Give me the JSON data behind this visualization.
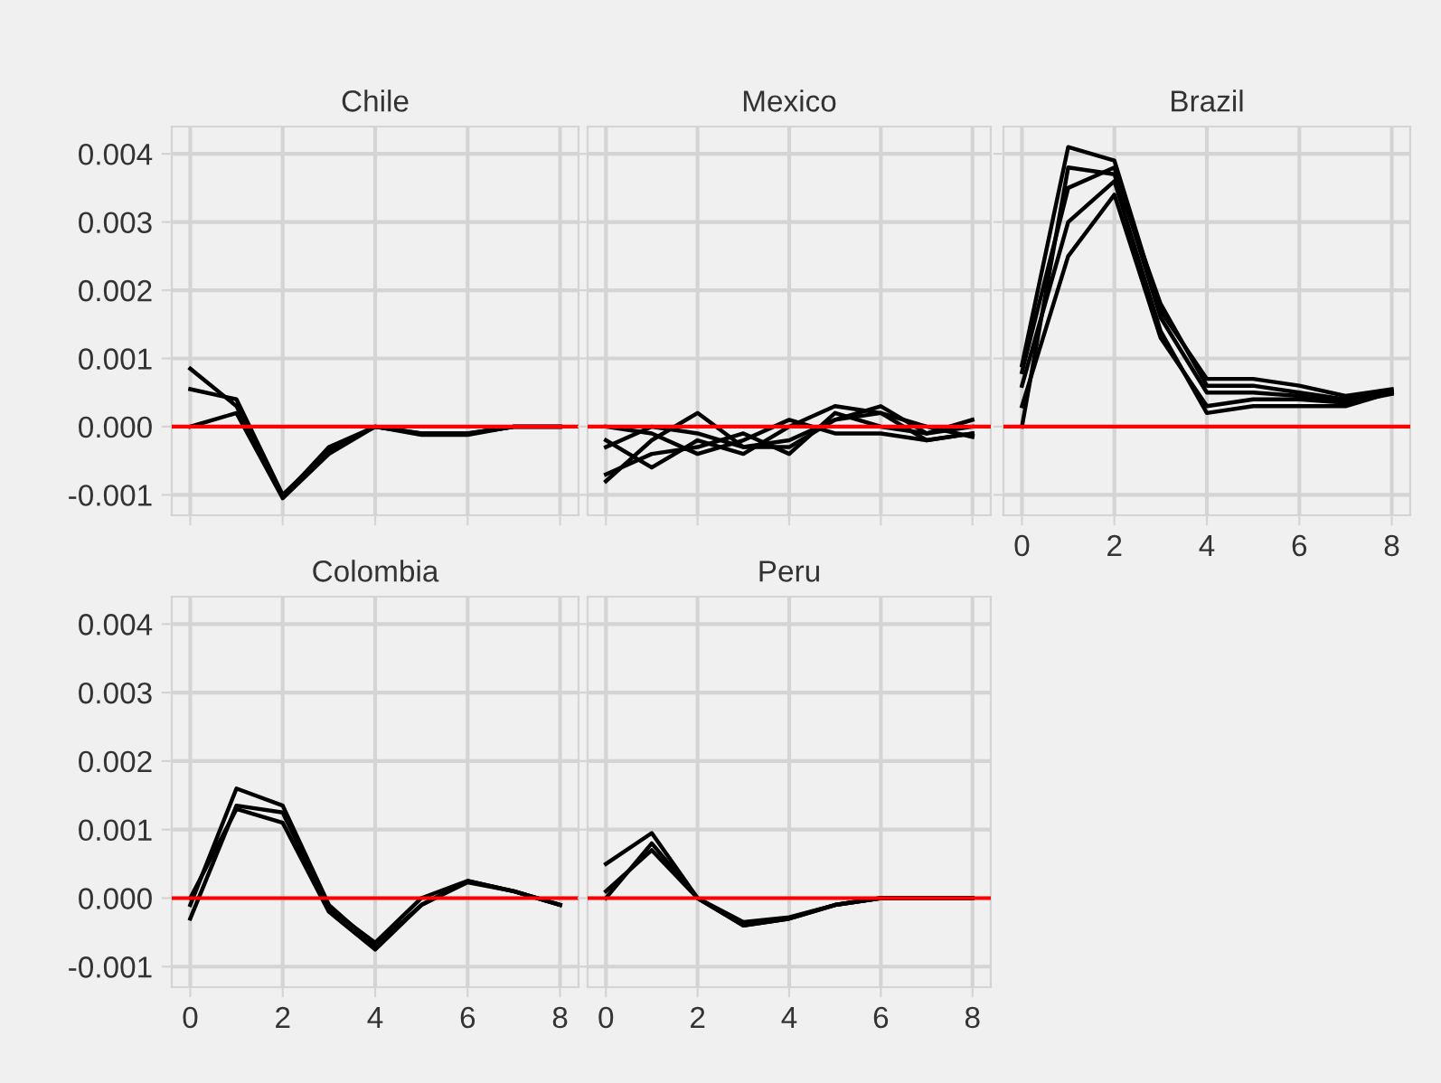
{
  "chart_data": [
    {
      "type": "line",
      "title": "Chile",
      "x": [
        0,
        1,
        2,
        3,
        4,
        5,
        6,
        7,
        8
      ],
      "xlim": [
        -0.4,
        8.4
      ],
      "xticks": [
        {
          "value": 0,
          "label": null
        },
        {
          "value": 2,
          "label": null
        },
        {
          "value": 4,
          "label": null
        },
        {
          "value": 6,
          "label": null
        },
        {
          "value": 8,
          "label": null
        }
      ],
      "ylim": [
        -0.0013,
        0.0044
      ],
      "yticks": [
        {
          "value": -0.001,
          "label": "-0.001"
        },
        {
          "value": 0,
          "label": "0.000"
        },
        {
          "value": 0.001,
          "label": "0.001"
        },
        {
          "value": 0.002,
          "label": "0.002"
        },
        {
          "value": 0.003,
          "label": "0.003"
        },
        {
          "value": 0.004,
          "label": "0.004"
        }
      ],
      "tick_labels": "y",
      "grid": true,
      "marker": "none",
      "line_style": "solid",
      "ref_lines": [
        {
          "axis": "y",
          "value": 0,
          "color": "#ff0000"
        }
      ],
      "series": [
        {
          "color": "#000000",
          "values": [
            0.00085,
            0.0003,
            -0.00103,
            -0.0003,
            0.0,
            -0.0001,
            -0.0001,
            0.0,
            0.0
          ]
        },
        {
          "color": "#000000",
          "values": [
            0.00055,
            0.0004,
            -0.001,
            -0.00035,
            0.0,
            -0.0001,
            -0.0001,
            0.0,
            0.0
          ]
        },
        {
          "color": "#000000",
          "values": [
            0.0,
            0.0002,
            -0.00105,
            -0.0004,
            0.0,
            -0.00012,
            -0.00012,
            0.0,
            0.0
          ]
        }
      ]
    },
    {
      "type": "line",
      "title": "Mexico",
      "x": [
        0,
        1,
        2,
        3,
        4,
        5,
        6,
        7,
        8
      ],
      "xlim": [
        -0.4,
        8.4
      ],
      "xticks": [
        {
          "value": 0,
          "label": null
        },
        {
          "value": 2,
          "label": null
        },
        {
          "value": 4,
          "label": null
        },
        {
          "value": 6,
          "label": null
        },
        {
          "value": 8,
          "label": null
        }
      ],
      "ylim": [
        -0.0013,
        0.0044
      ],
      "yticks": [
        {
          "value": -0.001,
          "label": null
        },
        {
          "value": 0,
          "label": null
        },
        {
          "value": 0.001,
          "label": null
        },
        {
          "value": 0.002,
          "label": null
        },
        {
          "value": 0.003,
          "label": null
        },
        {
          "value": 0.004,
          "label": null
        }
      ],
      "tick_labels": false,
      "grid": true,
      "marker": "none",
      "line_style": "solid",
      "ref_lines": [
        {
          "axis": "y",
          "value": 0,
          "color": "#ff0000"
        }
      ],
      "series": [
        {
          "color": "#000000",
          "values": [
            -0.0008,
            -0.0002,
            0.0002,
            -0.0003,
            -0.0003,
            0.0001,
            0.0002,
            -0.0002,
            -0.0001
          ]
        },
        {
          "color": "#000000",
          "values": [
            -0.0007,
            -0.0004,
            -0.0003,
            -0.0001,
            -0.0004,
            0.0002,
            0.0,
            -0.0001,
            0.0001
          ]
        },
        {
          "color": "#000000",
          "values": [
            -0.0002,
            -0.0006,
            -0.0002,
            -0.0004,
            0.0,
            0.0003,
            0.0002,
            0.0,
            -0.00015
          ]
        },
        {
          "color": "#000000",
          "values": [
            0.0,
            -0.0001,
            -0.0004,
            -0.0002,
            0.0001,
            -0.0001,
            -0.0001,
            -0.0002,
            -0.0001
          ]
        },
        {
          "color": "#000000",
          "values": [
            -0.0003,
            0.0,
            -0.0001,
            -0.0003,
            -0.0002,
            0.0001,
            0.0003,
            -0.0001,
            0.0
          ]
        }
      ]
    },
    {
      "type": "line",
      "title": "Brazil",
      "x": [
        0,
        1,
        2,
        3,
        4,
        5,
        6,
        7,
        8
      ],
      "xlim": [
        -0.4,
        8.4
      ],
      "xticks": [
        0,
        2,
        4,
        6,
        8
      ],
      "ylim": [
        -0.0013,
        0.0044
      ],
      "yticks": [
        {
          "value": -0.001,
          "label": null
        },
        {
          "value": 0,
          "label": null
        },
        {
          "value": 0.001,
          "label": null
        },
        {
          "value": 0.002,
          "label": null
        },
        {
          "value": 0.003,
          "label": null
        },
        {
          "value": 0.004,
          "label": null
        }
      ],
      "tick_labels": "x",
      "grid": true,
      "marker": "none",
      "line_style": "solid",
      "ref_lines": [
        {
          "axis": "y",
          "value": 0,
          "color": "#ff0000"
        }
      ],
      "series": [
        {
          "color": "#000000",
          "values": [
            0.0009,
            0.0041,
            0.0039,
            0.0017,
            0.0007,
            0.0007,
            0.0006,
            0.00045,
            0.00055
          ]
        },
        {
          "color": "#000000",
          "values": [
            0.0,
            0.0038,
            0.0037,
            0.0018,
            0.0006,
            0.0006,
            0.0005,
            0.0004,
            0.0005
          ]
        },
        {
          "color": "#000000",
          "values": [
            0.0006,
            0.003,
            0.0036,
            0.0014,
            0.0002,
            0.0003,
            0.0003,
            0.0003,
            0.0005
          ]
        },
        {
          "color": "#000000",
          "values": [
            0.0003,
            0.0025,
            0.0034,
            0.0013,
            0.0003,
            0.0004,
            0.0004,
            0.00035,
            0.00048
          ]
        },
        {
          "color": "#000000",
          "values": [
            0.0008,
            0.0035,
            0.0038,
            0.0016,
            0.0005,
            0.0005,
            0.00045,
            0.0004,
            0.0005
          ]
        }
      ]
    },
    {
      "type": "line",
      "title": "Colombia",
      "x": [
        0,
        1,
        2,
        3,
        4,
        5,
        6,
        7,
        8
      ],
      "xlim": [
        -0.4,
        8.4
      ],
      "xticks": [
        0,
        2,
        4,
        6,
        8
      ],
      "ylim": [
        -0.0013,
        0.0044
      ],
      "yticks": [
        {
          "value": -0.001,
          "label": "-0.001"
        },
        {
          "value": 0,
          "label": "0.000"
        },
        {
          "value": 0.001,
          "label": "0.001"
        },
        {
          "value": 0.002,
          "label": "0.002"
        },
        {
          "value": 0.003,
          "label": "0.003"
        },
        {
          "value": 0.004,
          "label": "0.004"
        }
      ],
      "grid": true,
      "marker": "none",
      "line_style": "solid",
      "ref_lines": [
        {
          "axis": "y",
          "value": 0,
          "color": "#ff0000"
        }
      ],
      "series": [
        {
          "color": "#000000",
          "values": [
            -0.0001,
            0.0016,
            0.00135,
            -0.0001,
            -0.0007,
            -0.0001,
            0.00025,
            0.0001,
            -0.0001
          ]
        },
        {
          "color": "#000000",
          "values": [
            -0.0003,
            0.00135,
            0.00125,
            -0.00015,
            -0.00065,
            0.0,
            0.00025,
            0.0001,
            -0.0001
          ]
        },
        {
          "color": "#000000",
          "values": [
            0.0,
            0.0013,
            0.0011,
            -0.0002,
            -0.00075,
            -0.0001,
            0.00023,
            0.0001,
            -0.0001
          ]
        }
      ]
    },
    {
      "type": "line",
      "title": "Peru",
      "x": [
        0,
        1,
        2,
        3,
        4,
        5,
        6,
        7,
        8
      ],
      "xlim": [
        -0.4,
        8.4
      ],
      "xticks": [
        0,
        2,
        4,
        6,
        8
      ],
      "ylim": [
        -0.0013,
        0.0044
      ],
      "yticks": [
        {
          "value": -0.001,
          "label": null
        },
        {
          "value": 0,
          "label": null
        },
        {
          "value": 0.001,
          "label": null
        },
        {
          "value": 0.002,
          "label": null
        },
        {
          "value": 0.003,
          "label": null
        },
        {
          "value": 0.004,
          "label": null
        }
      ],
      "tick_labels": "x",
      "grid": true,
      "marker": "none",
      "line_style": "solid",
      "ref_lines": [
        {
          "axis": "y",
          "value": 0,
          "color": "#ff0000"
        }
      ],
      "series": [
        {
          "color": "#000000",
          "values": [
            0.0005,
            0.00095,
            0.0,
            -0.0004,
            -0.0003,
            -0.0001,
            0.0,
            0.0,
            0.0
          ]
        },
        {
          "color": "#000000",
          "values": [
            0.0001,
            0.0007,
            0.0,
            -0.00035,
            -0.00028,
            -0.0001,
            0.0,
            0.0,
            0.0
          ]
        },
        {
          "color": "#000000",
          "values": [
            0.0,
            0.0008,
            0.0,
            -0.0004,
            -0.0003,
            -0.0001,
            0.0,
            0.0,
            0.0
          ]
        }
      ]
    }
  ]
}
